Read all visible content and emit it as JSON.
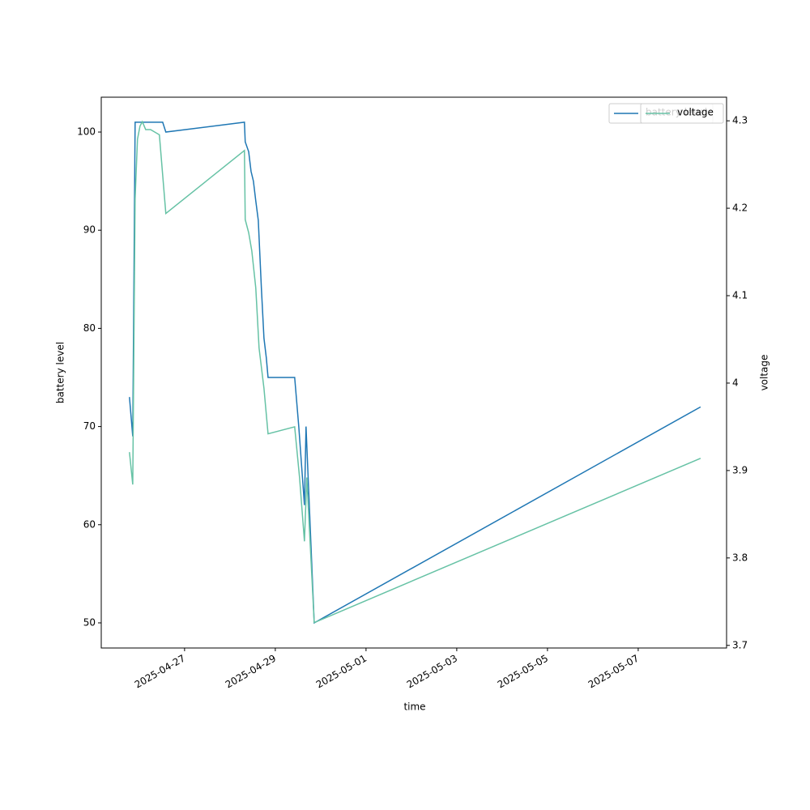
{
  "chart_data": {
    "type": "line",
    "xlabel": "time",
    "ylabel": "battery level",
    "y2label": "voltage",
    "xlim": [
      "2025-04-25 03:55",
      "2025-05-08 22:45"
    ],
    "xticks": [
      "2025-04-27",
      "2025-04-29",
      "2025-05-01",
      "2025-05-03",
      "2025-05-05",
      "2025-05-07"
    ],
    "ylim": [
      47.44,
      103.55
    ],
    "yticks": [
      50,
      60,
      70,
      80,
      90,
      100
    ],
    "y2lim": [
      3.697,
      4.327
    ],
    "y2ticks": [
      3.7,
      3.8,
      3.9,
      4.0,
      4.1,
      4.2,
      4.3
    ],
    "series": [
      {
        "name": "battery level",
        "color": "#1f77b4",
        "x": [
          "2025-04-25 18:50",
          "2025-04-25 20:35",
          "2025-04-25 21:50",
          "2025-04-26 12:25",
          "2025-04-26 14:05",
          "2025-04-28 07:40",
          "2025-04-28 08:05",
          "2025-04-28 09:55",
          "2025-04-28 11:10",
          "2025-04-28 12:25",
          "2025-04-28 13:40",
          "2025-04-28 15:00",
          "2025-04-28 16:40",
          "2025-04-28 18:00",
          "2025-04-28 19:15",
          "2025-04-28 20:10",
          "2025-04-29 10:15",
          "2025-04-29 12:25",
          "2025-04-29 15:25",
          "2025-04-29 16:15",
          "2025-04-29 20:35",
          "2025-05-08 09:00"
        ],
        "values": [
          73,
          69,
          101,
          101,
          100,
          101,
          99,
          98,
          96,
          95,
          93,
          91,
          84,
          79,
          77,
          75,
          75,
          70,
          62,
          70,
          50,
          72
        ]
      },
      {
        "name": "voltage",
        "color": "#66c2a5",
        "axis": "y2",
        "x": [
          "2025-04-25 18:50",
          "2025-04-25 20:35",
          "2025-04-25 21:50",
          "2025-04-25 23:05",
          "2025-04-26 00:25",
          "2025-04-26 01:40",
          "2025-04-26 03:25",
          "2025-04-26 06:00",
          "2025-04-26 10:40",
          "2025-04-26 14:05",
          "2025-04-28 07:40",
          "2025-04-28 08:05",
          "2025-04-28 09:55",
          "2025-04-28 11:35",
          "2025-04-28 13:40",
          "2025-04-28 15:25",
          "2025-04-28 18:00",
          "2025-04-28 20:10",
          "2025-04-29 10:15",
          "2025-04-29 12:50",
          "2025-04-29 15:25",
          "2025-04-29 16:40",
          "2025-04-29 20:35",
          "2025-05-08 09:00"
        ],
        "values": [
          3.921,
          3.884,
          4.211,
          4.279,
          4.294,
          4.299,
          4.29,
          4.29,
          4.284,
          4.194,
          4.266,
          4.187,
          4.172,
          4.151,
          4.109,
          4.04,
          3.994,
          3.942,
          3.95,
          3.892,
          3.819,
          3.892,
          3.726,
          3.914
        ]
      }
    ]
  }
}
